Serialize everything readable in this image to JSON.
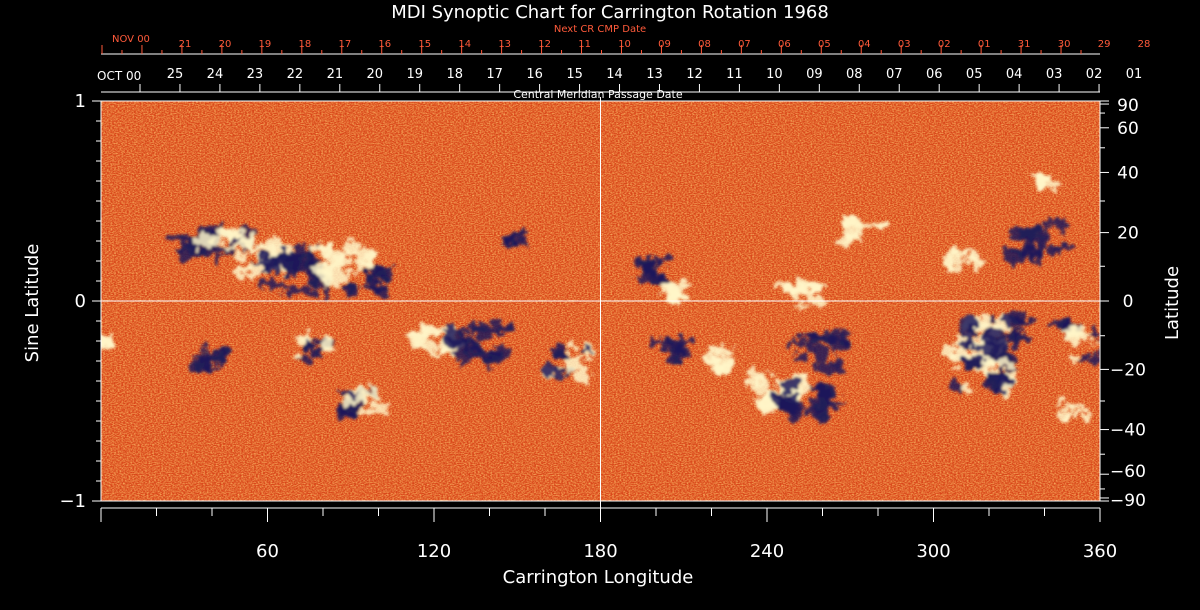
{
  "chart_data": {
    "type": "heatmap",
    "title": "MDI Synoptic Chart for Carrington Rotation 1968",
    "xlabel": "Carrington Longitude",
    "ylabel_left": "Sine Latitude",
    "ylabel_right": "Latitude",
    "xlim": [
      0,
      360
    ],
    "ylim_sine": [
      -1,
      1
    ],
    "x_ticks": [
      "60",
      "120",
      "180",
      "240",
      "300",
      "360"
    ],
    "y_left_ticks": [
      "1",
      "0",
      "−1"
    ],
    "y_right_ticks": [
      "90",
      "60",
      "40",
      "20",
      "0",
      "−20",
      "−40",
      "−60",
      "−90"
    ],
    "cmp_axis_title": "Central Meridian Passage Date",
    "cmp_month_label": "OCT 00",
    "cmp_dates": [
      "25",
      "24",
      "23",
      "22",
      "21",
      "20",
      "19",
      "18",
      "17",
      "16",
      "15",
      "14",
      "13",
      "12",
      "11",
      "10",
      "09",
      "08",
      "07",
      "06",
      "05",
      "04",
      "03",
      "02",
      "01"
    ],
    "next_axis_title": "Next CR CMP Date",
    "next_month_label": "NOV 00",
    "next_dates": [
      "21",
      "20",
      "19",
      "18",
      "17",
      "16",
      "15",
      "14",
      "13",
      "12",
      "11",
      "10",
      "09",
      "08",
      "07",
      "06",
      "05",
      "04",
      "03",
      "02",
      "01",
      "31",
      "30",
      "29",
      "28"
    ],
    "colors": {
      "background": "#000000",
      "map_base": "#e8551f",
      "positive": "#fff6c8",
      "negative": "#1c1a5a",
      "axis": "#ffffff",
      "next_axis": "#ff5a3a"
    },
    "active_regions": [
      {
        "lon": 34,
        "sinlat": 0.3,
        "polarity": "negative",
        "strength": 1.0
      },
      {
        "lon": 45,
        "sinlat": 0.28,
        "polarity": "mixed",
        "strength": 1.0
      },
      {
        "lon": 58,
        "sinlat": 0.22,
        "polarity": "positive",
        "strength": 1.2
      },
      {
        "lon": 70,
        "sinlat": 0.14,
        "polarity": "negative",
        "strength": 1.4
      },
      {
        "lon": 88,
        "sinlat": 0.18,
        "polarity": "positive",
        "strength": 1.2
      },
      {
        "lon": 96,
        "sinlat": 0.1,
        "polarity": "negative",
        "strength": 0.8
      },
      {
        "lon": 150,
        "sinlat": 0.32,
        "polarity": "negative",
        "strength": 0.5
      },
      {
        "lon": 200,
        "sinlat": 0.15,
        "polarity": "negative",
        "strength": 0.8
      },
      {
        "lon": 208,
        "sinlat": 0.05,
        "polarity": "positive",
        "strength": 0.6
      },
      {
        "lon": 252,
        "sinlat": 0.04,
        "polarity": "positive",
        "strength": 0.9
      },
      {
        "lon": 275,
        "sinlat": 0.35,
        "polarity": "positive",
        "strength": 0.8
      },
      {
        "lon": 338,
        "sinlat": 0.3,
        "polarity": "negative",
        "strength": 1.2
      },
      {
        "lon": 340,
        "sinlat": 0.6,
        "polarity": "positive",
        "strength": 0.5
      },
      {
        "lon": 310,
        "sinlat": 0.2,
        "polarity": "positive",
        "strength": 0.7
      },
      {
        "lon": 0,
        "sinlat": -0.2,
        "polarity": "positive",
        "strength": 0.5
      },
      {
        "lon": 40,
        "sinlat": -0.28,
        "polarity": "negative",
        "strength": 0.8
      },
      {
        "lon": 75,
        "sinlat": -0.25,
        "polarity": "mixed",
        "strength": 0.9
      },
      {
        "lon": 95,
        "sinlat": -0.5,
        "polarity": "mixed",
        "strength": 1.0
      },
      {
        "lon": 120,
        "sinlat": -0.2,
        "polarity": "positive",
        "strength": 1.0
      },
      {
        "lon": 135,
        "sinlat": -0.22,
        "polarity": "negative",
        "strength": 1.2
      },
      {
        "lon": 168,
        "sinlat": -0.3,
        "polarity": "mixed",
        "strength": 1.0
      },
      {
        "lon": 206,
        "sinlat": -0.25,
        "polarity": "negative",
        "strength": 0.7
      },
      {
        "lon": 225,
        "sinlat": -0.3,
        "polarity": "positive",
        "strength": 0.8
      },
      {
        "lon": 245,
        "sinlat": -0.45,
        "polarity": "positive",
        "strength": 1.2
      },
      {
        "lon": 255,
        "sinlat": -0.5,
        "polarity": "negative",
        "strength": 1.2
      },
      {
        "lon": 260,
        "sinlat": -0.25,
        "polarity": "negative",
        "strength": 1.1
      },
      {
        "lon": 315,
        "sinlat": -0.2,
        "polarity": "positive",
        "strength": 1.3
      },
      {
        "lon": 322,
        "sinlat": -0.18,
        "polarity": "negative",
        "strength": 1.3
      },
      {
        "lon": 318,
        "sinlat": -0.37,
        "polarity": "mixed",
        "strength": 1.3
      },
      {
        "lon": 355,
        "sinlat": -0.2,
        "polarity": "mixed",
        "strength": 1.2
      },
      {
        "lon": 350,
        "sinlat": -0.55,
        "polarity": "positive",
        "strength": 0.6
      }
    ]
  }
}
